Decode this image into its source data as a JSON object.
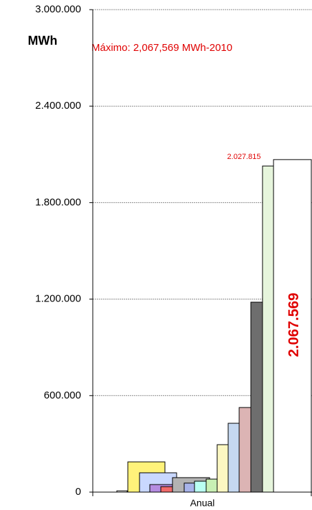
{
  "chart_data": {
    "type": "bar",
    "y_label": "MWh",
    "annotation": "Máximo: 2,067,569 MWh-2010",
    "categories": [
      "Anual"
    ],
    "ylim": [
      0,
      3000000
    ],
    "yticks": [
      {
        "value": 0,
        "label": "0"
      },
      {
        "value": 600000,
        "label": "600.000"
      },
      {
        "value": 1200000,
        "label": "1.200.000"
      },
      {
        "value": 1800000,
        "label": "1.800.000"
      },
      {
        "value": 2400000,
        "label": "2.400.000"
      },
      {
        "value": 3000000,
        "label": "3.000.000"
      }
    ],
    "grid": true,
    "series": [
      {
        "color": "#ffffff",
        "values": [
          8000
        ]
      },
      {
        "color": "#fff27a",
        "values": [
          188000
        ]
      },
      {
        "color": "#c9d8ff",
        "values": [
          120000
        ]
      },
      {
        "color": "#b58ce0",
        "values": [
          47000
        ]
      },
      {
        "color": "#f06a6a",
        "values": [
          34000
        ]
      },
      {
        "color": "#b3b3b3",
        "values": [
          90000
        ]
      },
      {
        "color": "#a8b4ea",
        "values": [
          56000
        ]
      },
      {
        "color": "#b9fff2",
        "values": [
          68000
        ]
      },
      {
        "color": "#c8f0b4",
        "values": [
          81000
        ]
      },
      {
        "color": "#fbf7c2",
        "values": [
          295000
        ]
      },
      {
        "color": "#c5d8f0",
        "values": [
          428000
        ]
      },
      {
        "color": "#dcb4b4",
        "values": [
          526000
        ]
      },
      {
        "color": "#6e6e6e",
        "values": [
          1181000
        ]
      },
      {
        "color": "#e6f5dc",
        "values": [
          2027815
        ],
        "value_labels": [
          "2.027.815"
        ]
      },
      {
        "color": "#ffffff",
        "values": [
          2067569
        ],
        "value_labels": [
          "2.067.569"
        ]
      }
    ]
  }
}
